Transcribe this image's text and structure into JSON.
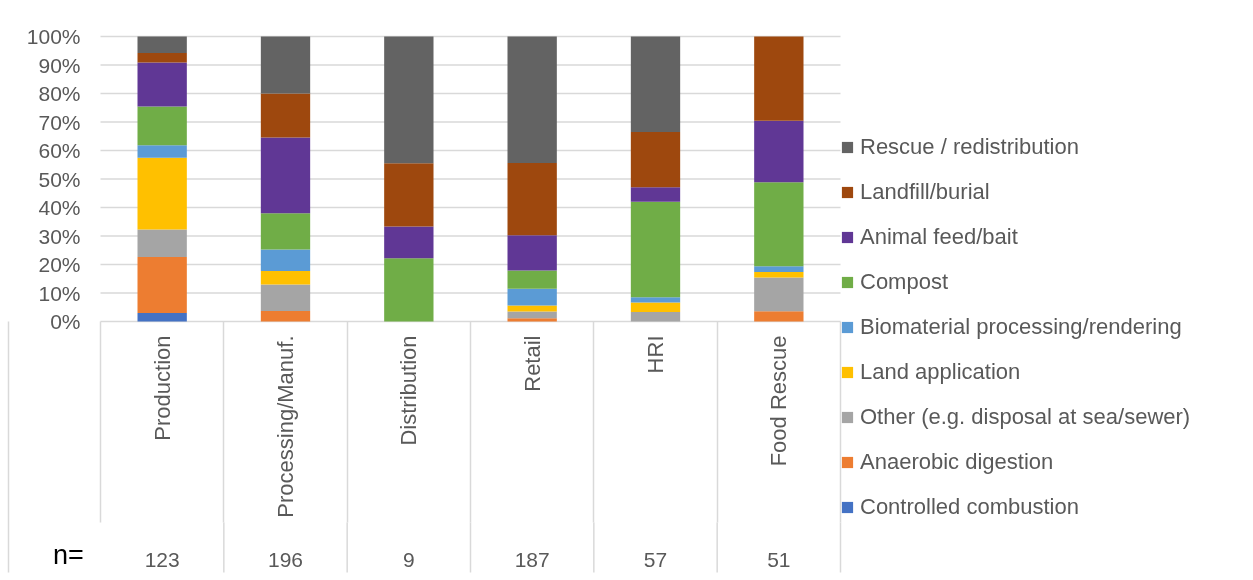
{
  "chart_data": {
    "type": "bar",
    "stacked": true,
    "categories": [
      "Production",
      "Processing/Manuf.",
      "Distribution",
      "Retail",
      "HRI",
      "Food Rescue"
    ],
    "series": [
      {
        "name": "Controlled combustion",
        "color": "#4472c4",
        "values": [
          3.0,
          null,
          null,
          null,
          null,
          null
        ]
      },
      {
        "name": "Anaerobic digestion",
        "color": "#ed7d31",
        "values": [
          19.6,
          3.7,
          null,
          1.1,
          null,
          3.6
        ]
      },
      {
        "name": "Other (e.g. disposal at sea/sewer)",
        "color": "#a5a5a5",
        "values": [
          9.7,
          9.3,
          null,
          2.4,
          3.3,
          11.8
        ]
      },
      {
        "name": "Land application",
        "color": "#ffc000",
        "values": [
          25.2,
          4.7,
          null,
          2.1,
          3.4,
          2.0
        ]
      },
      {
        "name": "Biomaterial processing/rendering",
        "color": "#5b9bd5",
        "values": [
          4.3,
          7.6,
          null,
          5.9,
          1.8,
          2.0
        ]
      },
      {
        "name": "Compost",
        "color": "#70ad47",
        "values": [
          13.6,
          12.7,
          22.2,
          6.4,
          33.5,
          29.5
        ]
      },
      {
        "name": "Animal feed/bait",
        "color": "#603795",
        "values": [
          15.5,
          26.6,
          11.1,
          12.4,
          5.1,
          21.5
        ]
      },
      {
        "name": "Landfill/burial",
        "color": "#9e480e",
        "values": [
          3.3,
          15.4,
          22.2,
          25.3,
          19.4,
          29.6
        ]
      },
      {
        "name": "Rescue / redistribution",
        "color": "#636363",
        "values": [
          5.8,
          20.0,
          44.5,
          44.4,
          33.5,
          null
        ]
      }
    ],
    "ylim": [
      0,
      100
    ],
    "yticks": [
      {
        "value": 0,
        "label": "0%"
      },
      {
        "value": 10,
        "label": "10%"
      },
      {
        "value": 20,
        "label": "20%"
      },
      {
        "value": 30,
        "label": "30%"
      },
      {
        "value": 40,
        "label": "40%"
      },
      {
        "value": 50,
        "label": "50%"
      },
      {
        "value": 60,
        "label": "60%"
      },
      {
        "value": 70,
        "label": "70%"
      },
      {
        "value": 80,
        "label": "80%"
      },
      {
        "value": 90,
        "label": "90%"
      },
      {
        "value": 100,
        "label": "100%"
      }
    ],
    "grid": "y",
    "legend": "right",
    "annotations": [
      "n=",
      "123",
      "196",
      "9",
      "187",
      "57",
      "51"
    ]
  }
}
